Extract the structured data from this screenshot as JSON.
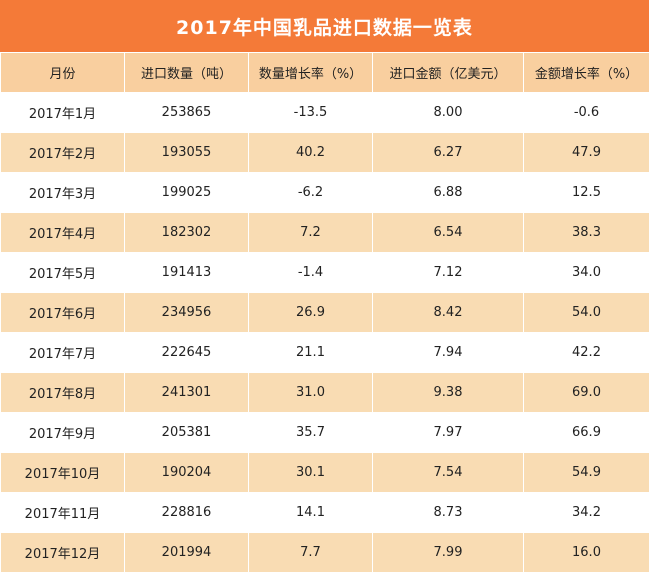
{
  "title": "2017年中国乳品进口数据一览表",
  "colors": {
    "header_bar": "#f47a38",
    "column_header": "#f9cf9f",
    "stripe": "#f9dcb3"
  },
  "columns": [
    "月份",
    "进口数量（吨）",
    "数量增长率（%）",
    "进口金额（亿美元）",
    "金额增长率（%）"
  ],
  "rows": [
    [
      "2017年1月",
      "253865",
      "-13.5",
      "8.00",
      "-0.6"
    ],
    [
      "2017年2月",
      "193055",
      "40.2",
      "6.27",
      "47.9"
    ],
    [
      "2017年3月",
      "199025",
      "-6.2",
      "6.88",
      "12.5"
    ],
    [
      "2017年4月",
      "182302",
      "7.2",
      "6.54",
      "38.3"
    ],
    [
      "2017年5月",
      "191413",
      "-1.4",
      "7.12",
      "34.0"
    ],
    [
      "2017年6月",
      "234956",
      "26.9",
      "8.42",
      "54.0"
    ],
    [
      "2017年7月",
      "222645",
      "21.1",
      "7.94",
      "42.2"
    ],
    [
      "2017年8月",
      "241301",
      "31.0",
      "9.38",
      "69.0"
    ],
    [
      "2017年9月",
      "205381",
      "35.7",
      "7.97",
      "66.9"
    ],
    [
      "2017年10月",
      "190204",
      "30.1",
      "7.54",
      "54.9"
    ],
    [
      "2017年11月",
      "228816",
      "14.1",
      "8.73",
      "34.2"
    ],
    [
      "2017年12月",
      "201994",
      "7.7",
      "7.99",
      "16.0"
    ]
  ]
}
